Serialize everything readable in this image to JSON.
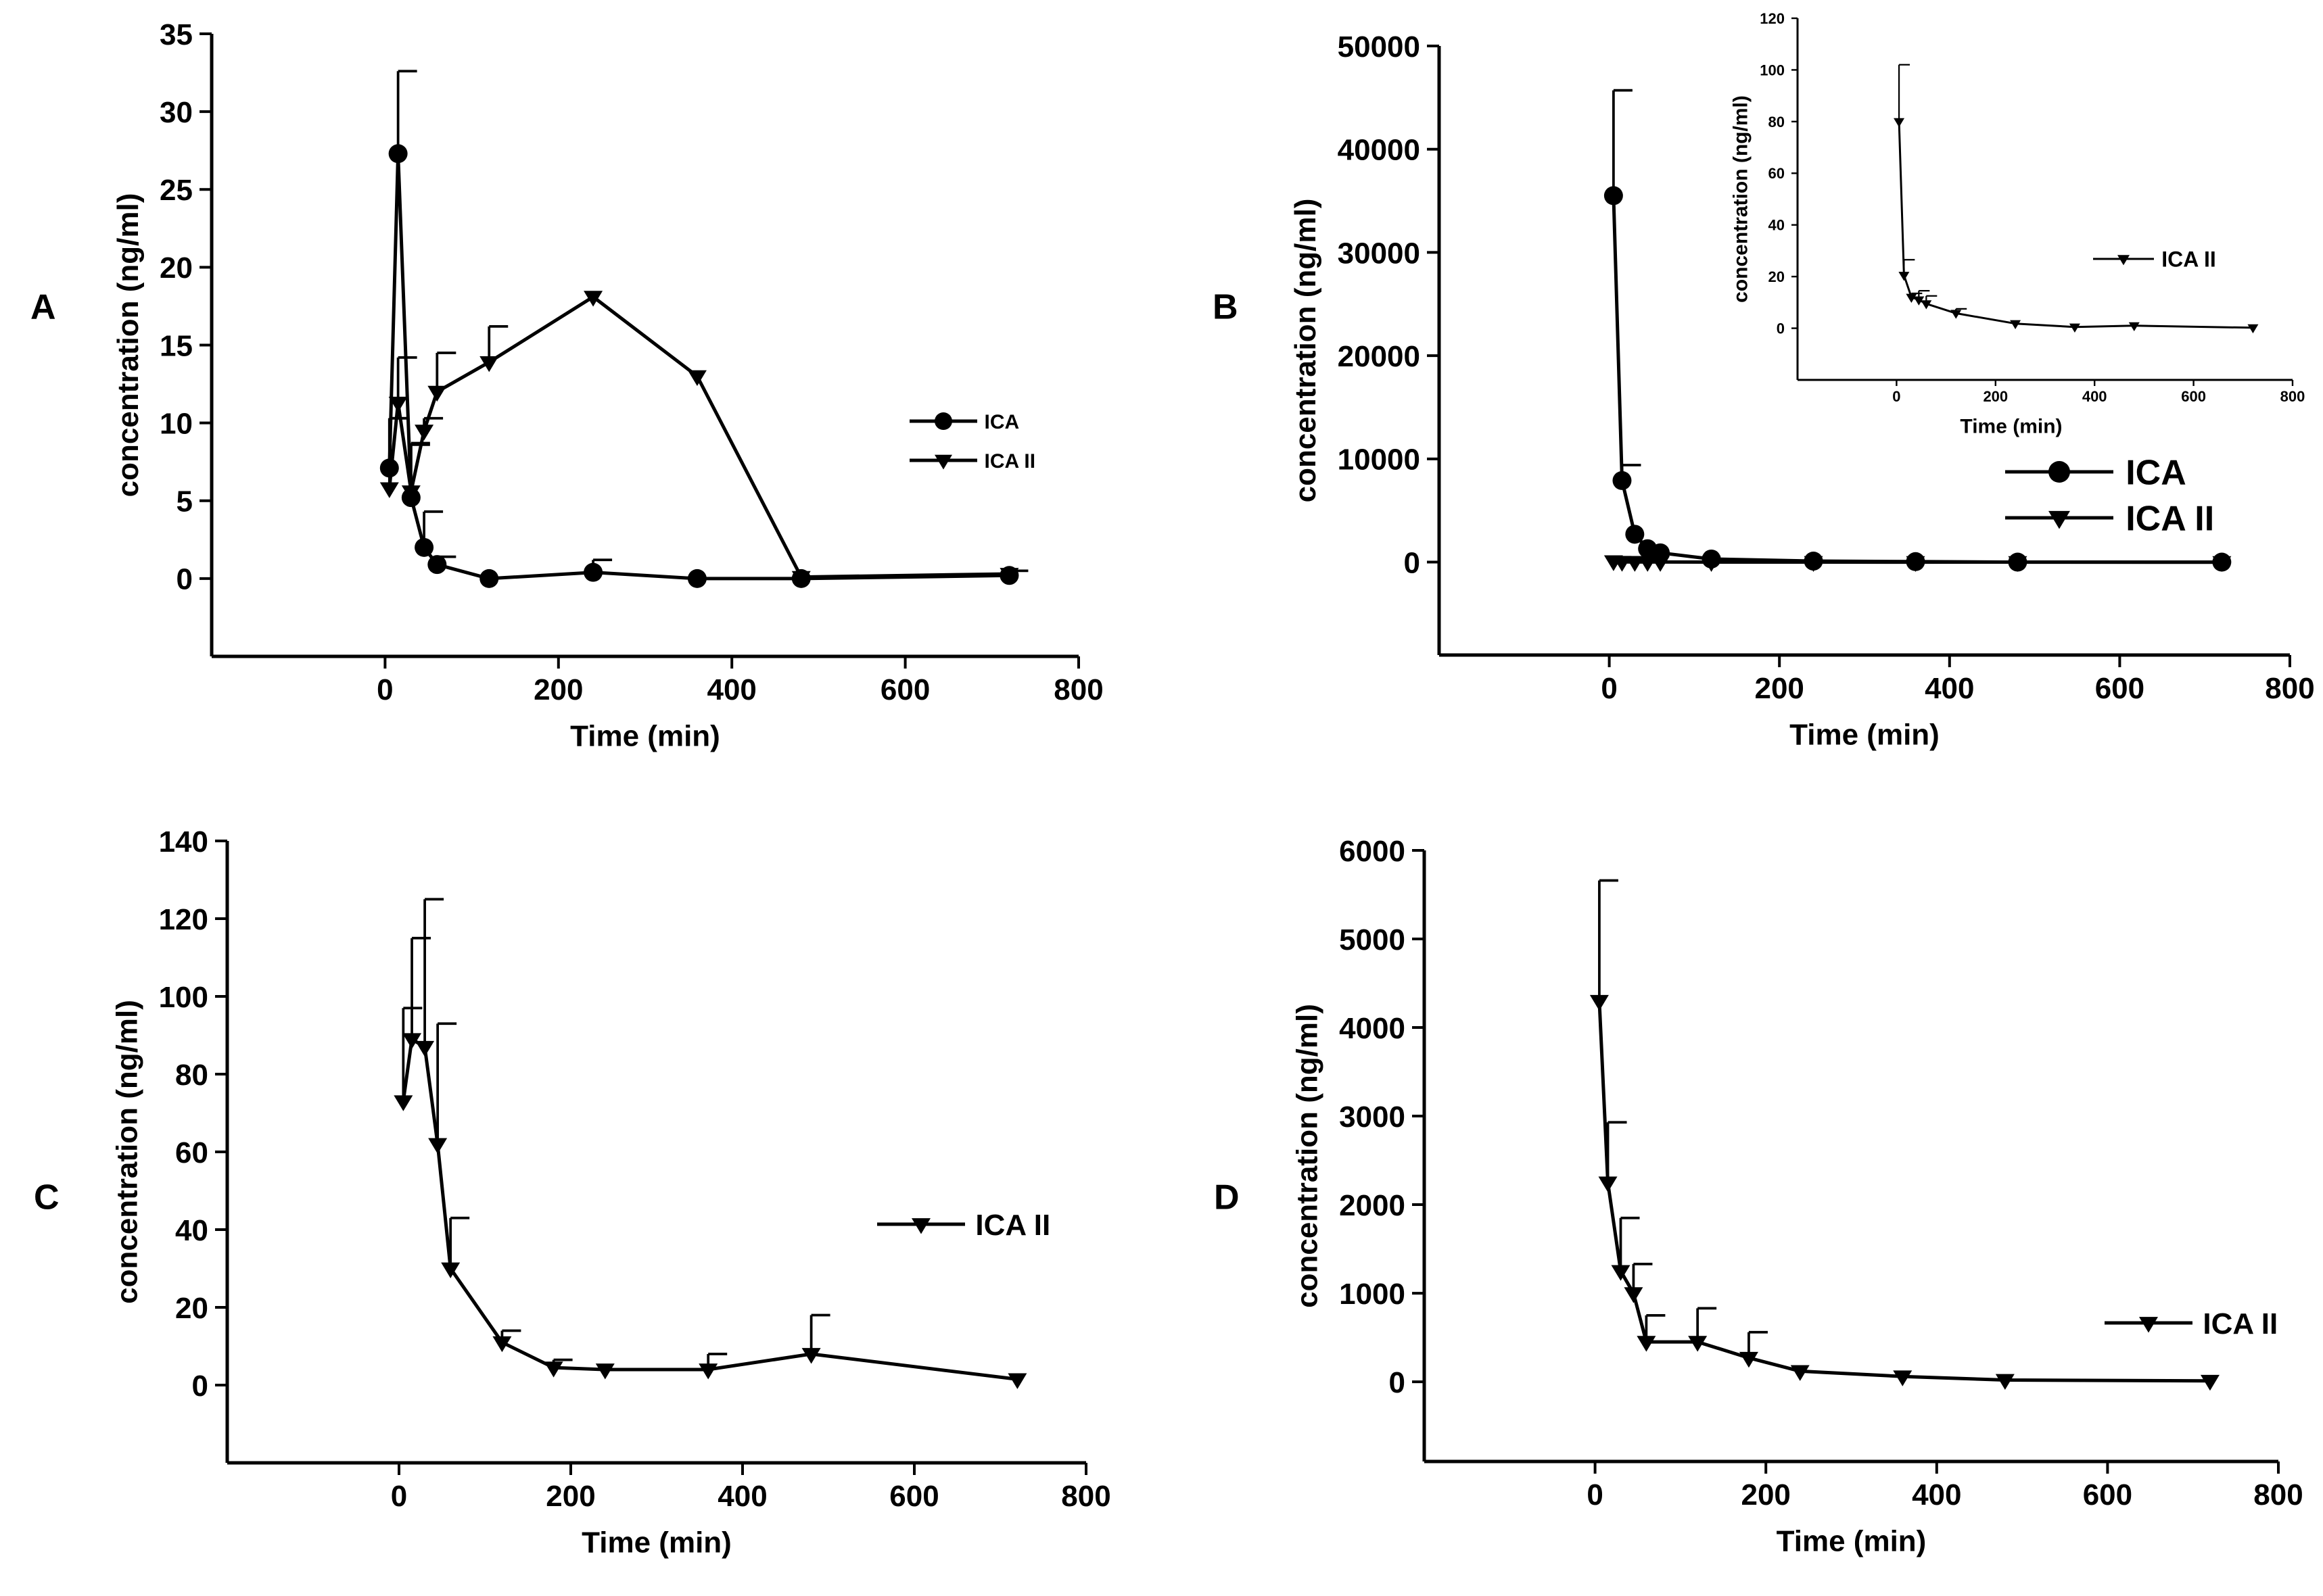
{
  "colors": {
    "ink": "#000000",
    "background": "#ffffff"
  },
  "chart_data": [
    {
      "panel_label": "A",
      "type": "line",
      "xlabel": "Time (min)",
      "ylabel": "concentration (ng/ml)",
      "xlim": [
        -200,
        800
      ],
      "ylim": [
        -5,
        35
      ],
      "x_ticks": [
        0,
        200,
        400,
        600,
        800
      ],
      "y_ticks": [
        0,
        5,
        10,
        15,
        20,
        25,
        30,
        35
      ],
      "legend_position": "right",
      "series": [
        {
          "name": "ICA",
          "marker": "circle",
          "x": [
            5,
            15,
            30,
            45,
            60,
            120,
            240,
            360,
            480,
            720
          ],
          "y": [
            7.1,
            27.3,
            5.2,
            2.0,
            0.9,
            0.0,
            0.4,
            0.0,
            0.0,
            0.2
          ],
          "error": [
            3.2,
            5.3,
            3.5,
            2.3,
            0.5,
            0.0,
            0.8,
            0.0,
            0.0,
            0.3
          ]
        },
        {
          "name": "ICA II",
          "marker": "triangle-down",
          "x": [
            5,
            15,
            30,
            45,
            60,
            120,
            240,
            360,
            480,
            720
          ],
          "y": [
            5.8,
            11.3,
            5.6,
            9.5,
            12.0,
            13.9,
            18.1,
            13.0,
            0.1,
            0.3
          ],
          "error": [
            4.5,
            2.9,
            3.0,
            0.8,
            2.5,
            2.3,
            0.0,
            0.0,
            0.0,
            0.0
          ]
        }
      ]
    },
    {
      "panel_label": "B",
      "type": "line",
      "xlabel": "Time (min)",
      "ylabel": "concentration (ng/ml)",
      "xlim": [
        -200,
        800
      ],
      "ylim": [
        -9000,
        50000
      ],
      "x_ticks": [
        0,
        200,
        400,
        600,
        800
      ],
      "y_ticks": [
        0,
        10000,
        20000,
        30000,
        40000,
        50000
      ],
      "legend_position": "center-right",
      "series": [
        {
          "name": "ICA",
          "marker": "circle",
          "x": [
            5,
            15,
            30,
            45,
            60,
            120,
            240,
            360,
            480,
            720
          ],
          "y": [
            35500,
            7900,
            2700,
            1300,
            900,
            300,
            100,
            50,
            0,
            0
          ],
          "error": [
            10200,
            1500,
            0,
            0,
            0,
            0,
            0,
            0,
            0,
            0
          ]
        },
        {
          "name": "ICA II",
          "marker": "triangle-down",
          "x": [
            5,
            15,
            30,
            45,
            60,
            120,
            240,
            360,
            480,
            720
          ],
          "y": [
            80,
            20,
            12,
            11,
            9,
            6,
            2,
            0.5,
            1,
            0
          ],
          "error": [
            0,
            0,
            0,
            0,
            0,
            0,
            0,
            0,
            0,
            0
          ]
        }
      ]
    },
    {
      "panel_label": "",
      "inset_of": "B",
      "type": "line",
      "xlabel": "Time (min)",
      "ylabel": "concentration (ng/ml)",
      "xlim": [
        -200,
        800
      ],
      "ylim": [
        -20,
        120
      ],
      "x_ticks": [
        0,
        200,
        400,
        600,
        800
      ],
      "y_ticks": [
        0,
        20,
        40,
        60,
        80,
        100,
        120
      ],
      "legend_position": "right",
      "series": [
        {
          "name": "ICA II",
          "marker": "triangle-down",
          "x": [
            5,
            15,
            30,
            45,
            60,
            120,
            240,
            360,
            480,
            720
          ],
          "y": [
            80,
            20.5,
            12,
            11,
            9.5,
            5.8,
            1.8,
            0.5,
            1.0,
            0.2
          ],
          "error": [
            22,
            6,
            1.5,
            3.5,
            3,
            1.7,
            0,
            0,
            0,
            0
          ]
        }
      ]
    },
    {
      "panel_label": "C",
      "type": "line",
      "xlabel": "Time (min)",
      "ylabel": "concentration (ng/ml)",
      "xlim": [
        -200,
        800
      ],
      "ylim": [
        -20,
        140
      ],
      "x_ticks": [
        0,
        200,
        400,
        600,
        800
      ],
      "y_ticks": [
        0,
        20,
        40,
        60,
        80,
        100,
        120,
        140
      ],
      "legend_position": "right",
      "series": [
        {
          "name": "ICA II",
          "marker": "triangle-down",
          "x": [
            5,
            15,
            30,
            45,
            60,
            120,
            180,
            240,
            360,
            480,
            720
          ],
          "y": [
            73,
            89,
            87,
            62,
            30,
            11,
            4.5,
            4,
            4,
            8,
            1.5
          ],
          "error": [
            24,
            26,
            38,
            31,
            13,
            3,
            2,
            0,
            4,
            10,
            0
          ]
        }
      ]
    },
    {
      "panel_label": "D",
      "type": "line",
      "xlabel": "Time (min)",
      "ylabel": "concentration (ng/ml)",
      "xlim": [
        -200,
        800
      ],
      "ylim": [
        -900,
        6000
      ],
      "x_ticks": [
        0,
        200,
        400,
        600,
        800
      ],
      "y_ticks": [
        0,
        1000,
        2000,
        3000,
        4000,
        5000,
        6000
      ],
      "legend_position": "right",
      "series": [
        {
          "name": "ICA II",
          "marker": "triangle-down",
          "x": [
            5,
            15,
            30,
            45,
            60,
            120,
            180,
            240,
            360,
            480,
            720
          ],
          "y": [
            4300,
            2250,
            1250,
            1000,
            450,
            450,
            270,
            120,
            60,
            20,
            10
          ],
          "error": [
            1360,
            680,
            600,
            330,
            300,
            380,
            290,
            0,
            0,
            0,
            0
          ]
        }
      ]
    }
  ]
}
